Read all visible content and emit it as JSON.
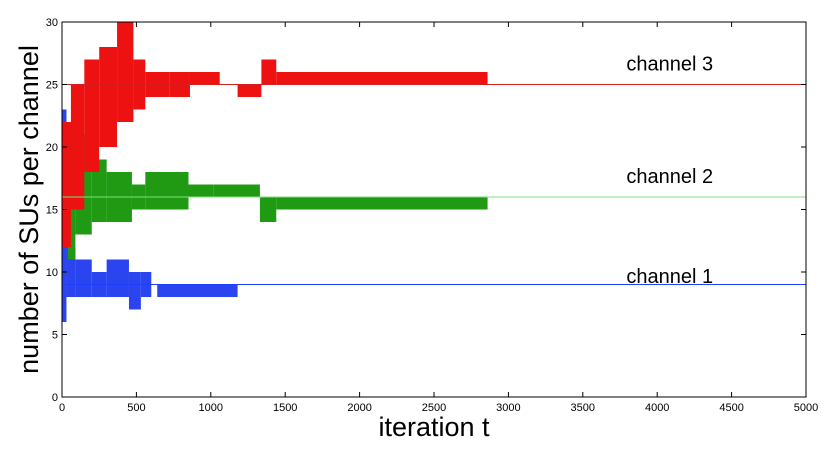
{
  "chart_data": {
    "type": "line",
    "title": "",
    "xlabel": "iteration t",
    "ylabel": "number of SUs per channel",
    "xlim": [
      0,
      5000
    ],
    "ylim": [
      0,
      30
    ],
    "xticks": [
      0,
      500,
      1000,
      1500,
      2000,
      2500,
      3000,
      3500,
      4000,
      4500,
      5000
    ],
    "yticks": [
      0,
      5,
      10,
      15,
      20,
      25,
      30
    ],
    "grid": false,
    "legend": "none",
    "series": [
      {
        "name": "channel 1",
        "color": "#1f3fff",
        "target": 9,
        "band_color": "#2a44f0",
        "bands": [
          [
            0,
            30,
            6,
            23
          ],
          [
            30,
            90,
            8,
            12
          ],
          [
            90,
            200,
            8,
            11
          ],
          [
            200,
            300,
            8,
            10
          ],
          [
            300,
            450,
            8,
            11
          ],
          [
            450,
            530,
            7,
            10
          ],
          [
            530,
            600,
            8,
            10
          ],
          [
            640,
            1180,
            8,
            9
          ]
        ]
      },
      {
        "name": "channel 2",
        "color": "#7fe07f",
        "target": 16,
        "band_color": "#1f9a12",
        "bands": [
          [
            0,
            40,
            12,
            21
          ],
          [
            40,
            90,
            11,
            22
          ],
          [
            90,
            200,
            13,
            21
          ],
          [
            200,
            300,
            14,
            19
          ],
          [
            300,
            470,
            14,
            18
          ],
          [
            470,
            560,
            15,
            17
          ],
          [
            560,
            850,
            15,
            18
          ],
          [
            850,
            1020,
            16,
            17
          ],
          [
            1020,
            1330,
            16,
            17
          ],
          [
            1330,
            1440,
            14,
            16
          ],
          [
            1440,
            2860,
            15,
            16
          ]
        ]
      },
      {
        "name": "channel 3",
        "color": "#d02020",
        "target": 25,
        "band_color": "#ee1111",
        "bands": [
          [
            0,
            60,
            12,
            22
          ],
          [
            60,
            150,
            15,
            25
          ],
          [
            150,
            250,
            18,
            27
          ],
          [
            250,
            370,
            20,
            28
          ],
          [
            370,
            480,
            22,
            30
          ],
          [
            480,
            560,
            23,
            27
          ],
          [
            560,
            720,
            24,
            26
          ],
          [
            720,
            860,
            24,
            26
          ],
          [
            860,
            1060,
            25,
            26
          ],
          [
            1180,
            1340,
            24,
            25
          ],
          [
            1340,
            1440,
            25,
            27
          ],
          [
            1440,
            2860,
            25,
            26
          ]
        ]
      }
    ],
    "annotations": [
      {
        "text": "channel 3",
        "x": 3950,
        "y": 26.6
      },
      {
        "text": "channel 2",
        "x": 3950,
        "y": 17.6
      },
      {
        "text": "channel 1",
        "x": 3950,
        "y": 9.6
      }
    ]
  }
}
